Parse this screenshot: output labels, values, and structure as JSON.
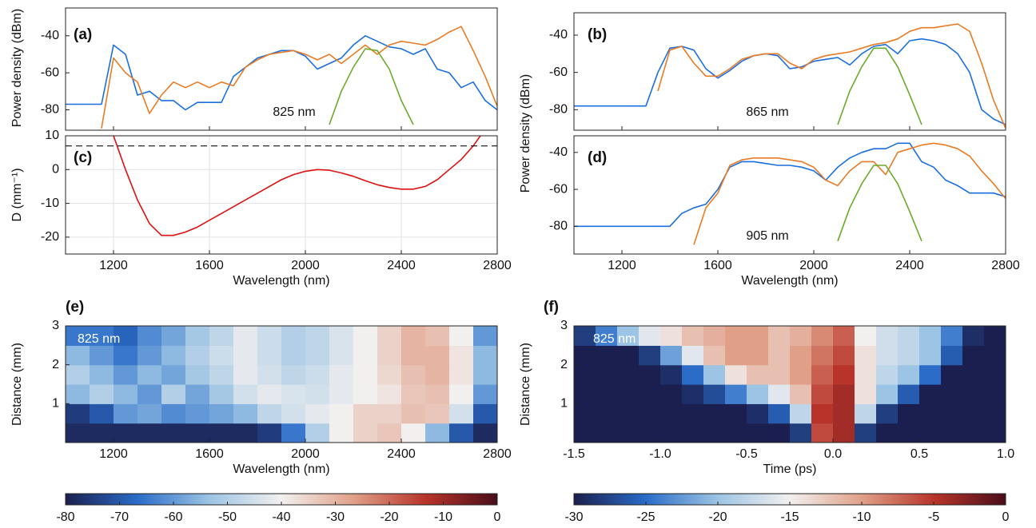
{
  "chart_data": [
    {
      "type": "line",
      "panel_label": "(a)",
      "annotation": "825 nm",
      "ylabel": "Power density (dBm)",
      "x": [
        1000,
        1050,
        1100,
        1150,
        1200,
        1250,
        1300,
        1350,
        1400,
        1450,
        1500,
        1550,
        1600,
        1650,
        1700,
        1750,
        1800,
        1850,
        1900,
        1950,
        2000,
        2050,
        2100,
        2150,
        2200,
        2250,
        2300,
        2350,
        2400,
        2450,
        2500,
        2550,
        2600,
        2650,
        2700,
        2750,
        2800
      ],
      "series": [
        {
          "color": "#1a6fdf",
          "values": [
            -77,
            -77,
            -77,
            -77,
            -45,
            -50,
            -72,
            -70,
            -75,
            -75,
            -80,
            -76,
            -76,
            -76,
            -62,
            -57,
            -52,
            -50,
            -48,
            -48,
            -51,
            -58,
            -55,
            -52,
            -45,
            -40,
            -43,
            -46,
            -47,
            -50,
            -47,
            -58,
            -60,
            -68,
            -65,
            -75,
            -80
          ]
        },
        {
          "color": "#e87b24",
          "values": [
            null,
            null,
            null,
            -90,
            -52,
            -60,
            -65,
            -82,
            -72,
            -65,
            -68,
            -65,
            -68,
            -65,
            -67,
            -57,
            -53,
            -50,
            -49,
            -48,
            -50,
            -53,
            -50,
            -55,
            -50,
            -45,
            -50,
            -45,
            -43,
            -44,
            -45,
            -42,
            -38,
            -35,
            -48,
            -62,
            -78
          ]
        },
        {
          "color": "#6aaa2a",
          "values": [
            null,
            null,
            null,
            null,
            null,
            null,
            null,
            null,
            null,
            null,
            null,
            null,
            null,
            null,
            null,
            null,
            null,
            null,
            null,
            null,
            null,
            null,
            -88,
            -70,
            -57,
            -47,
            -48,
            -58,
            -75,
            -88,
            null,
            null,
            null,
            null,
            null,
            null,
            null
          ]
        }
      ],
      "xlim": [
        1000,
        2800
      ],
      "ylim": [
        -91,
        -25
      ],
      "xticks": [
        1200,
        1600,
        2000,
        2400,
        2800
      ],
      "yticks": [
        -80,
        -60,
        -40
      ]
    },
    {
      "type": "line",
      "panel_label": "(b)",
      "annotation": "865 nm",
      "ylabel": "Power density (dBm)",
      "x": [
        1000,
        1050,
        1100,
        1150,
        1200,
        1250,
        1300,
        1350,
        1400,
        1450,
        1500,
        1550,
        1600,
        1650,
        1700,
        1750,
        1800,
        1850,
        1900,
        1950,
        2000,
        2050,
        2100,
        2150,
        2200,
        2250,
        2300,
        2350,
        2400,
        2450,
        2500,
        2550,
        2600,
        2650,
        2700,
        2750,
        2800
      ],
      "series": [
        {
          "color": "#1a6fdf",
          "values": [
            -78,
            -78,
            -78,
            -78,
            -78,
            -78,
            -78,
            -60,
            -47,
            -46,
            -48,
            -58,
            -63,
            -59,
            -54,
            -51,
            -50,
            -51,
            -58,
            -57,
            -54,
            -53,
            -52,
            -56,
            -50,
            -46,
            -45,
            -50,
            -43,
            -42,
            -43,
            -45,
            -50,
            -60,
            -80,
            -85,
            -88
          ]
        },
        {
          "color": "#e87b24",
          "values": [
            null,
            null,
            null,
            null,
            null,
            null,
            null,
            -70,
            -48,
            -46,
            -55,
            -62,
            -62,
            -58,
            -53,
            -51,
            -50,
            -50,
            -55,
            -58,
            -53,
            -51,
            -50,
            -49,
            -47,
            -45,
            -44,
            -42,
            -38,
            -36,
            -36,
            -35,
            -34,
            -38,
            -55,
            -75,
            -90
          ]
        },
        {
          "color": "#6aaa2a",
          "values": [
            null,
            null,
            null,
            null,
            null,
            null,
            null,
            null,
            null,
            null,
            null,
            null,
            null,
            null,
            null,
            null,
            null,
            null,
            null,
            null,
            null,
            null,
            -88,
            -70,
            -57,
            -47,
            -47,
            -57,
            -72,
            -88,
            null,
            null,
            null,
            null,
            null,
            null,
            null
          ]
        }
      ],
      "xlim": [
        1000,
        2800
      ],
      "ylim": [
        -91,
        -28
      ],
      "xticks": [
        1200,
        1600,
        2000,
        2400,
        2800
      ],
      "yticks": [
        -80,
        -60,
        -40
      ]
    },
    {
      "type": "line",
      "panel_label": "(c)",
      "ylabel": "D (mm⁻¹)",
      "xlabel": "Wavelength (nm)",
      "x": [
        1200,
        1250,
        1300,
        1350,
        1400,
        1450,
        1500,
        1550,
        1600,
        1650,
        1700,
        1750,
        1800,
        1850,
        1900,
        1950,
        2000,
        2050,
        2100,
        2150,
        2200,
        2250,
        2300,
        2350,
        2400,
        2450,
        2500,
        2550,
        2600,
        2650,
        2700,
        2750
      ],
      "series": [
        {
          "color": "#e01010",
          "values": [
            10,
            0,
            -9,
            -16,
            -19.5,
            -19.5,
            -18.5,
            -17,
            -15,
            -13,
            -11,
            -9,
            -7,
            -5,
            -3,
            -1.5,
            -0.5,
            0,
            -0.2,
            -1,
            -2,
            -3.3,
            -4.5,
            -5.3,
            -5.8,
            -5.8,
            -5,
            -3,
            0,
            3,
            7,
            12
          ]
        }
      ],
      "hline": 7,
      "grid": true,
      "xlim": [
        1000,
        2800
      ],
      "ylim": [
        -25,
        10
      ],
      "xticks": [
        1200,
        1600,
        2000,
        2400,
        2800
      ],
      "yticks": [
        -20,
        -10,
        0,
        10
      ]
    },
    {
      "type": "line",
      "panel_label": "(d)",
      "annotation": "905 nm",
      "xlabel": "Wavelength (nm)",
      "x": [
        1000,
        1050,
        1100,
        1150,
        1200,
        1250,
        1300,
        1350,
        1400,
        1450,
        1500,
        1550,
        1600,
        1650,
        1700,
        1750,
        1800,
        1850,
        1900,
        1950,
        2000,
        2050,
        2100,
        2150,
        2200,
        2250,
        2300,
        2350,
        2400,
        2450,
        2500,
        2550,
        2600,
        2650,
        2700,
        2750,
        2800
      ],
      "series": [
        {
          "color": "#1a6fdf",
          "values": [
            -80,
            -80,
            -80,
            -80,
            -80,
            -80,
            -80,
            -80,
            -80,
            -73,
            -70,
            -68,
            -60,
            -48,
            -45,
            -45,
            -46,
            -47,
            -47,
            -48,
            -50,
            -55,
            -48,
            -43,
            -40,
            -38,
            -38,
            -35,
            -35,
            -45,
            -48,
            -55,
            -58,
            -62,
            -62,
            -62,
            -64
          ]
        },
        {
          "color": "#e87b24",
          "values": [
            null,
            null,
            null,
            null,
            null,
            null,
            null,
            null,
            null,
            null,
            -90,
            -70,
            -62,
            -47,
            -44,
            -43,
            -43,
            -43,
            -44,
            -45,
            -48,
            -55,
            -58,
            -50,
            -45,
            -45,
            -52,
            -40,
            -38,
            -36,
            -35,
            -36,
            -38,
            -42,
            -50,
            -57,
            -65
          ]
        },
        {
          "color": "#6aaa2a",
          "values": [
            null,
            null,
            null,
            null,
            null,
            null,
            null,
            null,
            null,
            null,
            null,
            null,
            null,
            null,
            null,
            null,
            null,
            null,
            null,
            null,
            null,
            null,
            -88,
            -70,
            -57,
            -47,
            -47,
            -57,
            -72,
            -88,
            null,
            null,
            null,
            null,
            null,
            null,
            null
          ]
        }
      ],
      "xlim": [
        1000,
        2800
      ],
      "ylim": [
        -95,
        -31
      ],
      "xticks": [
        1200,
        1600,
        2000,
        2400,
        2800
      ],
      "yticks": [
        -80,
        -60,
        -40
      ]
    },
    {
      "type": "heatmap",
      "panel_label": "(e)",
      "annotation": "825 nm",
      "ylabel": "Distance (mm)",
      "xlabel": "Wavelength (nm)",
      "xlim": [
        1000,
        2800
      ],
      "ylim": [
        0,
        3
      ],
      "xticks": [
        1200,
        1600,
        2000,
        2400,
        2800
      ],
      "yticks": [
        1,
        2,
        3
      ],
      "z": [
        [
          -78,
          -78,
          -78,
          -78,
          -78,
          -78,
          -78,
          -78,
          -75,
          -65,
          -50,
          -40,
          -35,
          -33,
          -40,
          -55,
          -70,
          -78
        ],
        [
          -75,
          -70,
          -60,
          -58,
          -62,
          -60,
          -58,
          -55,
          -48,
          -45,
          -42,
          -40,
          -35,
          -35,
          -32,
          -33,
          -45,
          -70
        ],
        [
          -55,
          -50,
          -55,
          -60,
          -50,
          -58,
          -52,
          -45,
          -42,
          -44,
          -45,
          -42,
          -40,
          -38,
          -33,
          -32,
          -40,
          -60
        ],
        [
          -50,
          -55,
          -60,
          -55,
          -58,
          -52,
          -48,
          -42,
          -45,
          -48,
          -46,
          -42,
          -40,
          -36,
          -32,
          -30,
          -38,
          -55
        ],
        [
          -55,
          -60,
          -65,
          -60,
          -55,
          -50,
          -46,
          -42,
          -46,
          -50,
          -48,
          -44,
          -40,
          -35,
          -30,
          -30,
          -38,
          -55
        ],
        [
          -65,
          -65,
          -68,
          -62,
          -58,
          -52,
          -48,
          -42,
          -46,
          -50,
          -48,
          -44,
          -40,
          -35,
          -30,
          -32,
          -40,
          -60
        ]
      ],
      "clim": [
        -80,
        0
      ],
      "cticks": [
        -80,
        -70,
        -60,
        -50,
        -40,
        -30,
        -20,
        -10,
        0
      ],
      "colormap": [
        "#1b1f4f",
        "#2a6cc8",
        "#9cc4e4",
        "#f2f0ef",
        "#e0a088",
        "#b8342a",
        "#4a0d1a"
      ]
    },
    {
      "type": "heatmap",
      "panel_label": "(f)",
      "annotation": "825 nm",
      "ylabel": "Distance (mm)",
      "xlabel": "Time (ps)",
      "xlim": [
        -1.5,
        1
      ],
      "ylim": [
        0,
        3
      ],
      "xticks": [
        -1.5,
        {
          "value": -1,
          "label": "-1.0"
        },
        -0.5,
        {
          "value": 0,
          "label": "0.0"
        },
        0.5,
        {
          "value": 1,
          "label": "1.0"
        }
      ],
      "yticks": [
        1,
        2,
        3
      ],
      "z": [
        [
          -30,
          -30,
          -30,
          -30,
          -30,
          -30,
          -30,
          -30,
          -30,
          -30,
          -28,
          -6,
          -4,
          -28,
          -30,
          -30,
          -30,
          -30,
          -30,
          -30
        ],
        [
          -30,
          -30,
          -30,
          -30,
          -30,
          -30,
          -30,
          -30,
          -29,
          -26,
          -18,
          -5,
          -4,
          -18,
          -28,
          -30,
          -30,
          -30,
          -30,
          -30
        ],
        [
          -30,
          -30,
          -30,
          -30,
          -30,
          -29,
          -27,
          -24,
          -20,
          -16,
          -12,
          -6,
          -4,
          -14,
          -20,
          -26,
          -30,
          -30,
          -30,
          -30
        ],
        [
          -30,
          -30,
          -30,
          -30,
          -29,
          -25,
          -20,
          -14,
          -12,
          -12,
          -10,
          -7,
          -5,
          -14,
          -18,
          -20,
          -25,
          -30,
          -30,
          -30
        ],
        [
          -30,
          -30,
          -30,
          -28,
          -22,
          -16,
          -12,
          -10,
          -10,
          -12,
          -10,
          -8,
          -6,
          -14,
          -17,
          -18,
          -20,
          -26,
          -30,
          -30
        ],
        [
          -28,
          -24,
          -20,
          -16,
          -14,
          -12,
          -11,
          -10,
          -10,
          -12,
          -11,
          -9,
          -7,
          -15,
          -17,
          -18,
          -20,
          -24,
          -29,
          -30
        ]
      ],
      "clim": [
        -30,
        0
      ],
      "cticks": [
        -30,
        -25,
        -20,
        -15,
        -10,
        -5,
        0
      ],
      "colormap": [
        "#1b1f4f",
        "#2a6cc8",
        "#9cc4e4",
        "#f2f0ef",
        "#e0a088",
        "#b8342a",
        "#4a0d1a"
      ]
    }
  ]
}
